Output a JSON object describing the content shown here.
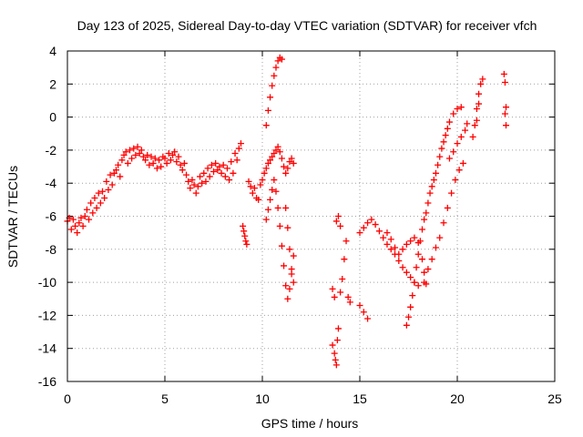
{
  "chart_data": {
    "type": "scatter",
    "title": "Day 123 of 2025, Sidereal Day-to-day VTEC variation (SDTVAR) for receiver vfch",
    "xlabel": "GPS time / hours",
    "ylabel": "SDTVAR / TECUs",
    "xlim": [
      0,
      25
    ],
    "ylim": [
      -16,
      4
    ],
    "xticks": [
      0,
      5,
      10,
      15,
      20,
      25
    ],
    "yticks": [
      -16,
      -14,
      -12,
      -10,
      -8,
      -6,
      -4,
      -2,
      0,
      2,
      4
    ],
    "grid": true,
    "marker": "plus",
    "color": "#ff0000",
    "series": [
      {
        "values": [
          [
            0.0,
            -6.3
          ],
          [
            0.1,
            -6.1
          ],
          [
            0.2,
            -6.8
          ],
          [
            0.3,
            -6.2
          ],
          [
            0.4,
            -6.6
          ],
          [
            0.5,
            -7.0
          ],
          [
            0.6,
            -6.4
          ],
          [
            0.7,
            -6.1
          ],
          [
            0.8,
            -6.6
          ],
          [
            0.9,
            -6.0
          ],
          [
            1.0,
            -5.6
          ],
          [
            1.1,
            -6.2
          ],
          [
            1.2,
            -5.2
          ],
          [
            1.3,
            -5.8
          ],
          [
            1.4,
            -4.9
          ],
          [
            1.5,
            -5.5
          ],
          [
            1.6,
            -4.6
          ],
          [
            1.7,
            -5.2
          ],
          [
            1.8,
            -4.5
          ],
          [
            1.9,
            -4.9
          ],
          [
            2.0,
            -3.9
          ],
          [
            2.1,
            -4.4
          ],
          [
            2.2,
            -3.5
          ],
          [
            2.3,
            -4.1
          ],
          [
            2.4,
            -3.4
          ],
          [
            2.5,
            -3.2
          ],
          [
            2.6,
            -2.9
          ],
          [
            2.7,
            -3.6
          ],
          [
            2.8,
            -2.6
          ],
          [
            2.9,
            -2.3
          ],
          [
            3.0,
            -2.1
          ],
          [
            3.1,
            -2.8
          ],
          [
            3.2,
            -2.0
          ],
          [
            3.3,
            -2.5
          ],
          [
            3.4,
            -1.9
          ],
          [
            3.5,
            -2.3
          ],
          [
            3.6,
            -1.8
          ],
          [
            3.7,
            -2.2
          ],
          [
            3.8,
            -2.0
          ],
          [
            3.9,
            -2.4
          ],
          [
            4.0,
            -2.6
          ],
          [
            4.1,
            -2.3
          ],
          [
            4.2,
            -2.9
          ],
          [
            4.3,
            -2.4
          ],
          [
            4.4,
            -2.8
          ],
          [
            4.5,
            -2.5
          ],
          [
            4.6,
            -3.1
          ],
          [
            4.7,
            -2.6
          ],
          [
            4.8,
            -3.0
          ],
          [
            4.9,
            -2.4
          ]
        ]
      },
      {
        "values": [
          [
            5.0,
            -2.5
          ],
          [
            5.1,
            -2.8
          ],
          [
            5.2,
            -2.2
          ],
          [
            5.3,
            -2.6
          ],
          [
            5.4,
            -2.3
          ],
          [
            5.5,
            -2.1
          ],
          [
            5.6,
            -2.7
          ],
          [
            5.7,
            -2.4
          ],
          [
            5.8,
            -2.9
          ],
          [
            5.9,
            -3.2
          ],
          [
            6.0,
            -2.8
          ],
          [
            6.1,
            -3.5
          ],
          [
            6.2,
            -3.9
          ],
          [
            6.3,
            -4.3
          ],
          [
            6.4,
            -3.8
          ],
          [
            6.5,
            -4.1
          ],
          [
            6.6,
            -4.6
          ],
          [
            6.7,
            -4.2
          ],
          [
            6.8,
            -3.6
          ],
          [
            6.9,
            -4.0
          ],
          [
            7.0,
            -3.4
          ],
          [
            7.1,
            -3.9
          ],
          [
            7.2,
            -3.1
          ],
          [
            7.3,
            -3.6
          ],
          [
            7.4,
            -2.9
          ],
          [
            7.5,
            -3.3
          ],
          [
            7.6,
            -2.8
          ],
          [
            7.7,
            -3.2
          ],
          [
            7.8,
            -3.0
          ],
          [
            7.9,
            -3.4
          ],
          [
            8.0,
            -2.9
          ],
          [
            8.1,
            -3.6
          ],
          [
            8.2,
            -3.1
          ],
          [
            8.3,
            -3.8
          ],
          [
            8.4,
            -2.7
          ],
          [
            8.5,
            -3.4
          ],
          [
            8.6,
            -2.2
          ],
          [
            8.7,
            -2.6
          ],
          [
            8.8,
            -1.9
          ],
          [
            8.9,
            -1.6
          ]
        ]
      },
      {
        "values": [
          [
            9.0,
            -6.6
          ],
          [
            9.05,
            -6.9
          ],
          [
            9.1,
            -7.2
          ],
          [
            9.15,
            -7.5
          ],
          [
            9.2,
            -7.7
          ],
          [
            9.3,
            -3.9
          ],
          [
            9.4,
            -4.2
          ],
          [
            9.5,
            -4.6
          ],
          [
            9.6,
            -4.3
          ],
          [
            9.7,
            -4.9
          ],
          [
            9.8,
            -5.0
          ],
          [
            9.9,
            -4.1
          ],
          [
            10.0,
            -3.8
          ],
          [
            10.1,
            -3.4
          ],
          [
            10.2,
            -3.1
          ],
          [
            10.3,
            -2.8
          ],
          [
            10.4,
            -2.6
          ],
          [
            10.5,
            -2.4
          ],
          [
            10.6,
            -2.2
          ],
          [
            10.7,
            -2.0
          ],
          [
            10.8,
            -1.8
          ],
          [
            10.9,
            -2.1
          ],
          [
            11.0,
            -2.5
          ],
          [
            11.1,
            -3.0
          ],
          [
            11.2,
            -3.4
          ],
          [
            11.3,
            -3.1
          ],
          [
            11.4,
            -2.7
          ],
          [
            11.5,
            -2.5
          ],
          [
            11.6,
            -2.8
          ]
        ]
      },
      {
        "values": [
          [
            10.2,
            -6.2
          ],
          [
            10.3,
            -5.6
          ],
          [
            10.4,
            -5.0
          ],
          [
            10.5,
            -4.4
          ],
          [
            10.6,
            -3.8
          ],
          [
            10.7,
            -4.5
          ],
          [
            10.8,
            -5.5
          ],
          [
            10.9,
            -6.6
          ],
          [
            11.0,
            -7.8
          ],
          [
            11.1,
            -9.0
          ],
          [
            11.2,
            -10.2
          ],
          [
            11.3,
            -11.0
          ],
          [
            11.4,
            -10.4
          ],
          [
            11.5,
            -9.5
          ],
          [
            11.6,
            -8.4
          ],
          [
            11.2,
            -5.5
          ],
          [
            11.3,
            -6.7
          ],
          [
            11.4,
            -8.0
          ],
          [
            11.5,
            -9.2
          ],
          [
            11.6,
            -10.0
          ]
        ]
      },
      {
        "values": [
          [
            10.2,
            -0.5
          ],
          [
            10.3,
            0.4
          ],
          [
            10.4,
            1.2
          ],
          [
            10.5,
            1.9
          ],
          [
            10.6,
            2.5
          ],
          [
            10.7,
            3.0
          ],
          [
            10.8,
            3.4
          ],
          [
            10.9,
            3.6
          ],
          [
            11.0,
            3.5
          ]
        ]
      },
      {
        "values": [
          [
            13.6,
            -10.4
          ],
          [
            13.7,
            -10.9
          ],
          [
            13.8,
            -6.3
          ],
          [
            13.9,
            -6.0
          ],
          [
            14.0,
            -6.6
          ],
          [
            13.6,
            -13.8
          ],
          [
            13.7,
            -14.3
          ],
          [
            13.75,
            -14.7
          ],
          [
            13.8,
            -15.0
          ],
          [
            13.85,
            -13.5
          ],
          [
            13.9,
            -12.8
          ],
          [
            14.0,
            -10.6
          ],
          [
            14.1,
            -9.8
          ],
          [
            14.2,
            -8.6
          ],
          [
            14.3,
            -7.5
          ],
          [
            14.4,
            -10.9
          ],
          [
            14.5,
            -11.2
          ],
          [
            15.0,
            -11.4
          ],
          [
            15.2,
            -11.8
          ],
          [
            15.4,
            -12.2
          ]
        ]
      },
      {
        "values": [
          [
            15.0,
            -7.0
          ],
          [
            15.2,
            -6.7
          ],
          [
            15.4,
            -6.4
          ],
          [
            15.6,
            -6.2
          ],
          [
            15.8,
            -6.5
          ],
          [
            16.0,
            -6.9
          ],
          [
            16.2,
            -7.3
          ],
          [
            16.4,
            -7.7
          ],
          [
            16.6,
            -8.0
          ],
          [
            16.8,
            -8.3
          ],
          [
            17.0,
            -8.7
          ],
          [
            17.2,
            -9.1
          ],
          [
            17.4,
            -9.4
          ],
          [
            17.6,
            -9.7
          ],
          [
            17.8,
            -10.0
          ],
          [
            18.0,
            -10.2
          ],
          [
            16.4,
            -7.0
          ],
          [
            16.6,
            -7.4
          ],
          [
            16.8,
            -7.9
          ],
          [
            17.0,
            -8.3
          ],
          [
            17.2,
            -8.0
          ],
          [
            17.4,
            -7.7
          ],
          [
            17.6,
            -7.5
          ],
          [
            17.8,
            -7.3
          ],
          [
            18.0,
            -7.6
          ],
          [
            18.2,
            -8.6
          ],
          [
            18.3,
            -9.4
          ],
          [
            18.4,
            -10.1
          ]
        ]
      },
      {
        "values": [
          [
            17.4,
            -12.6
          ],
          [
            17.5,
            -12.1
          ],
          [
            17.6,
            -11.5
          ],
          [
            17.7,
            -10.8
          ],
          [
            17.8,
            -10.0
          ],
          [
            17.9,
            -9.1
          ],
          [
            18.0,
            -8.3
          ],
          [
            18.1,
            -7.5
          ],
          [
            18.2,
            -6.8
          ],
          [
            18.3,
            -6.2
          ],
          [
            18.4,
            -5.8
          ],
          [
            18.5,
            -5.2
          ],
          [
            18.6,
            -4.6
          ],
          [
            18.7,
            -4.2
          ],
          [
            18.8,
            -3.8
          ],
          [
            18.9,
            -3.4
          ],
          [
            19.0,
            -2.9
          ],
          [
            19.1,
            -2.4
          ],
          [
            19.2,
            -1.9
          ],
          [
            19.3,
            -1.5
          ],
          [
            19.4,
            -1.1
          ],
          [
            19.5,
            -0.7
          ],
          [
            19.6,
            -0.3
          ],
          [
            19.8,
            0.2
          ],
          [
            20.0,
            0.5
          ],
          [
            20.2,
            0.6
          ]
        ]
      },
      {
        "values": [
          [
            18.3,
            -10.0
          ],
          [
            18.5,
            -9.2
          ],
          [
            18.7,
            -8.6
          ],
          [
            18.9,
            -7.9
          ],
          [
            19.1,
            -7.3
          ],
          [
            19.3,
            -6.4
          ],
          [
            19.5,
            -5.5
          ],
          [
            19.7,
            -4.6
          ],
          [
            19.9,
            -3.8
          ],
          [
            20.1,
            -3.2
          ],
          [
            20.3,
            -2.8
          ],
          [
            19.6,
            -2.5
          ],
          [
            19.8,
            -2.1
          ],
          [
            20.0,
            -1.6
          ],
          [
            20.2,
            -1.2
          ],
          [
            20.4,
            -0.8
          ],
          [
            20.5,
            -0.4
          ]
        ]
      },
      {
        "values": [
          [
            20.8,
            -1.2
          ],
          [
            20.9,
            -0.5
          ],
          [
            21.0,
            0.5
          ],
          [
            21.1,
            1.4
          ],
          [
            21.2,
            2.0
          ],
          [
            21.3,
            2.3
          ],
          [
            21.0,
            -0.2
          ],
          [
            21.1,
            0.8
          ]
        ]
      },
      {
        "values": [
          [
            22.4,
            2.6
          ],
          [
            22.45,
            2.1
          ],
          [
            22.5,
            0.6
          ],
          [
            22.45,
            0.2
          ],
          [
            22.5,
            -0.5
          ]
        ]
      }
    ]
  }
}
